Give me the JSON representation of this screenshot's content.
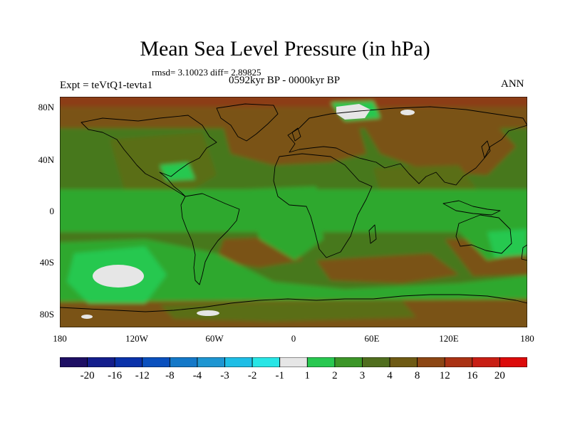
{
  "title": "Mean Sea Level Pressure (in hPa)",
  "stats": "rmsd= 3.10023 diff= 2.89825",
  "period": "0592kyr BP - 0000kyr BP",
  "experiment": "Expt = teVtQ1-tevta1",
  "season": "ANN",
  "lat_labels": [
    "80N",
    "40N",
    "0",
    "40S",
    "80S"
  ],
  "lon_labels": [
    "180",
    "120W",
    "60W",
    "0",
    "60E",
    "120E",
    "180"
  ],
  "colorbar": {
    "labels": [
      "-20",
      "-16",
      "-12",
      "-8",
      "-4",
      "-3",
      "-2",
      "-1",
      "1",
      "2",
      "3",
      "4",
      "8",
      "12",
      "16",
      "20"
    ],
    "colors": [
      "#1e0f64",
      "#141e8c",
      "#0a32aa",
      "#0a50be",
      "#1478c8",
      "#1e96d2",
      "#1ebee6",
      "#28e6e6",
      "#e6e6e6",
      "#28c850",
      "#3c9628",
      "#506e1e",
      "#6e5a14",
      "#8c4614",
      "#aa3214",
      "#c81e14",
      "#dc0a0a"
    ]
  },
  "map_colors": {
    "base": "#46781e",
    "olive": "#5a6e14",
    "brown": "#7a5214",
    "darkbrown": "#8c3c14",
    "green": "#2ea82e",
    "lightgreen": "#28c850",
    "white": "#e6e6e6"
  }
}
